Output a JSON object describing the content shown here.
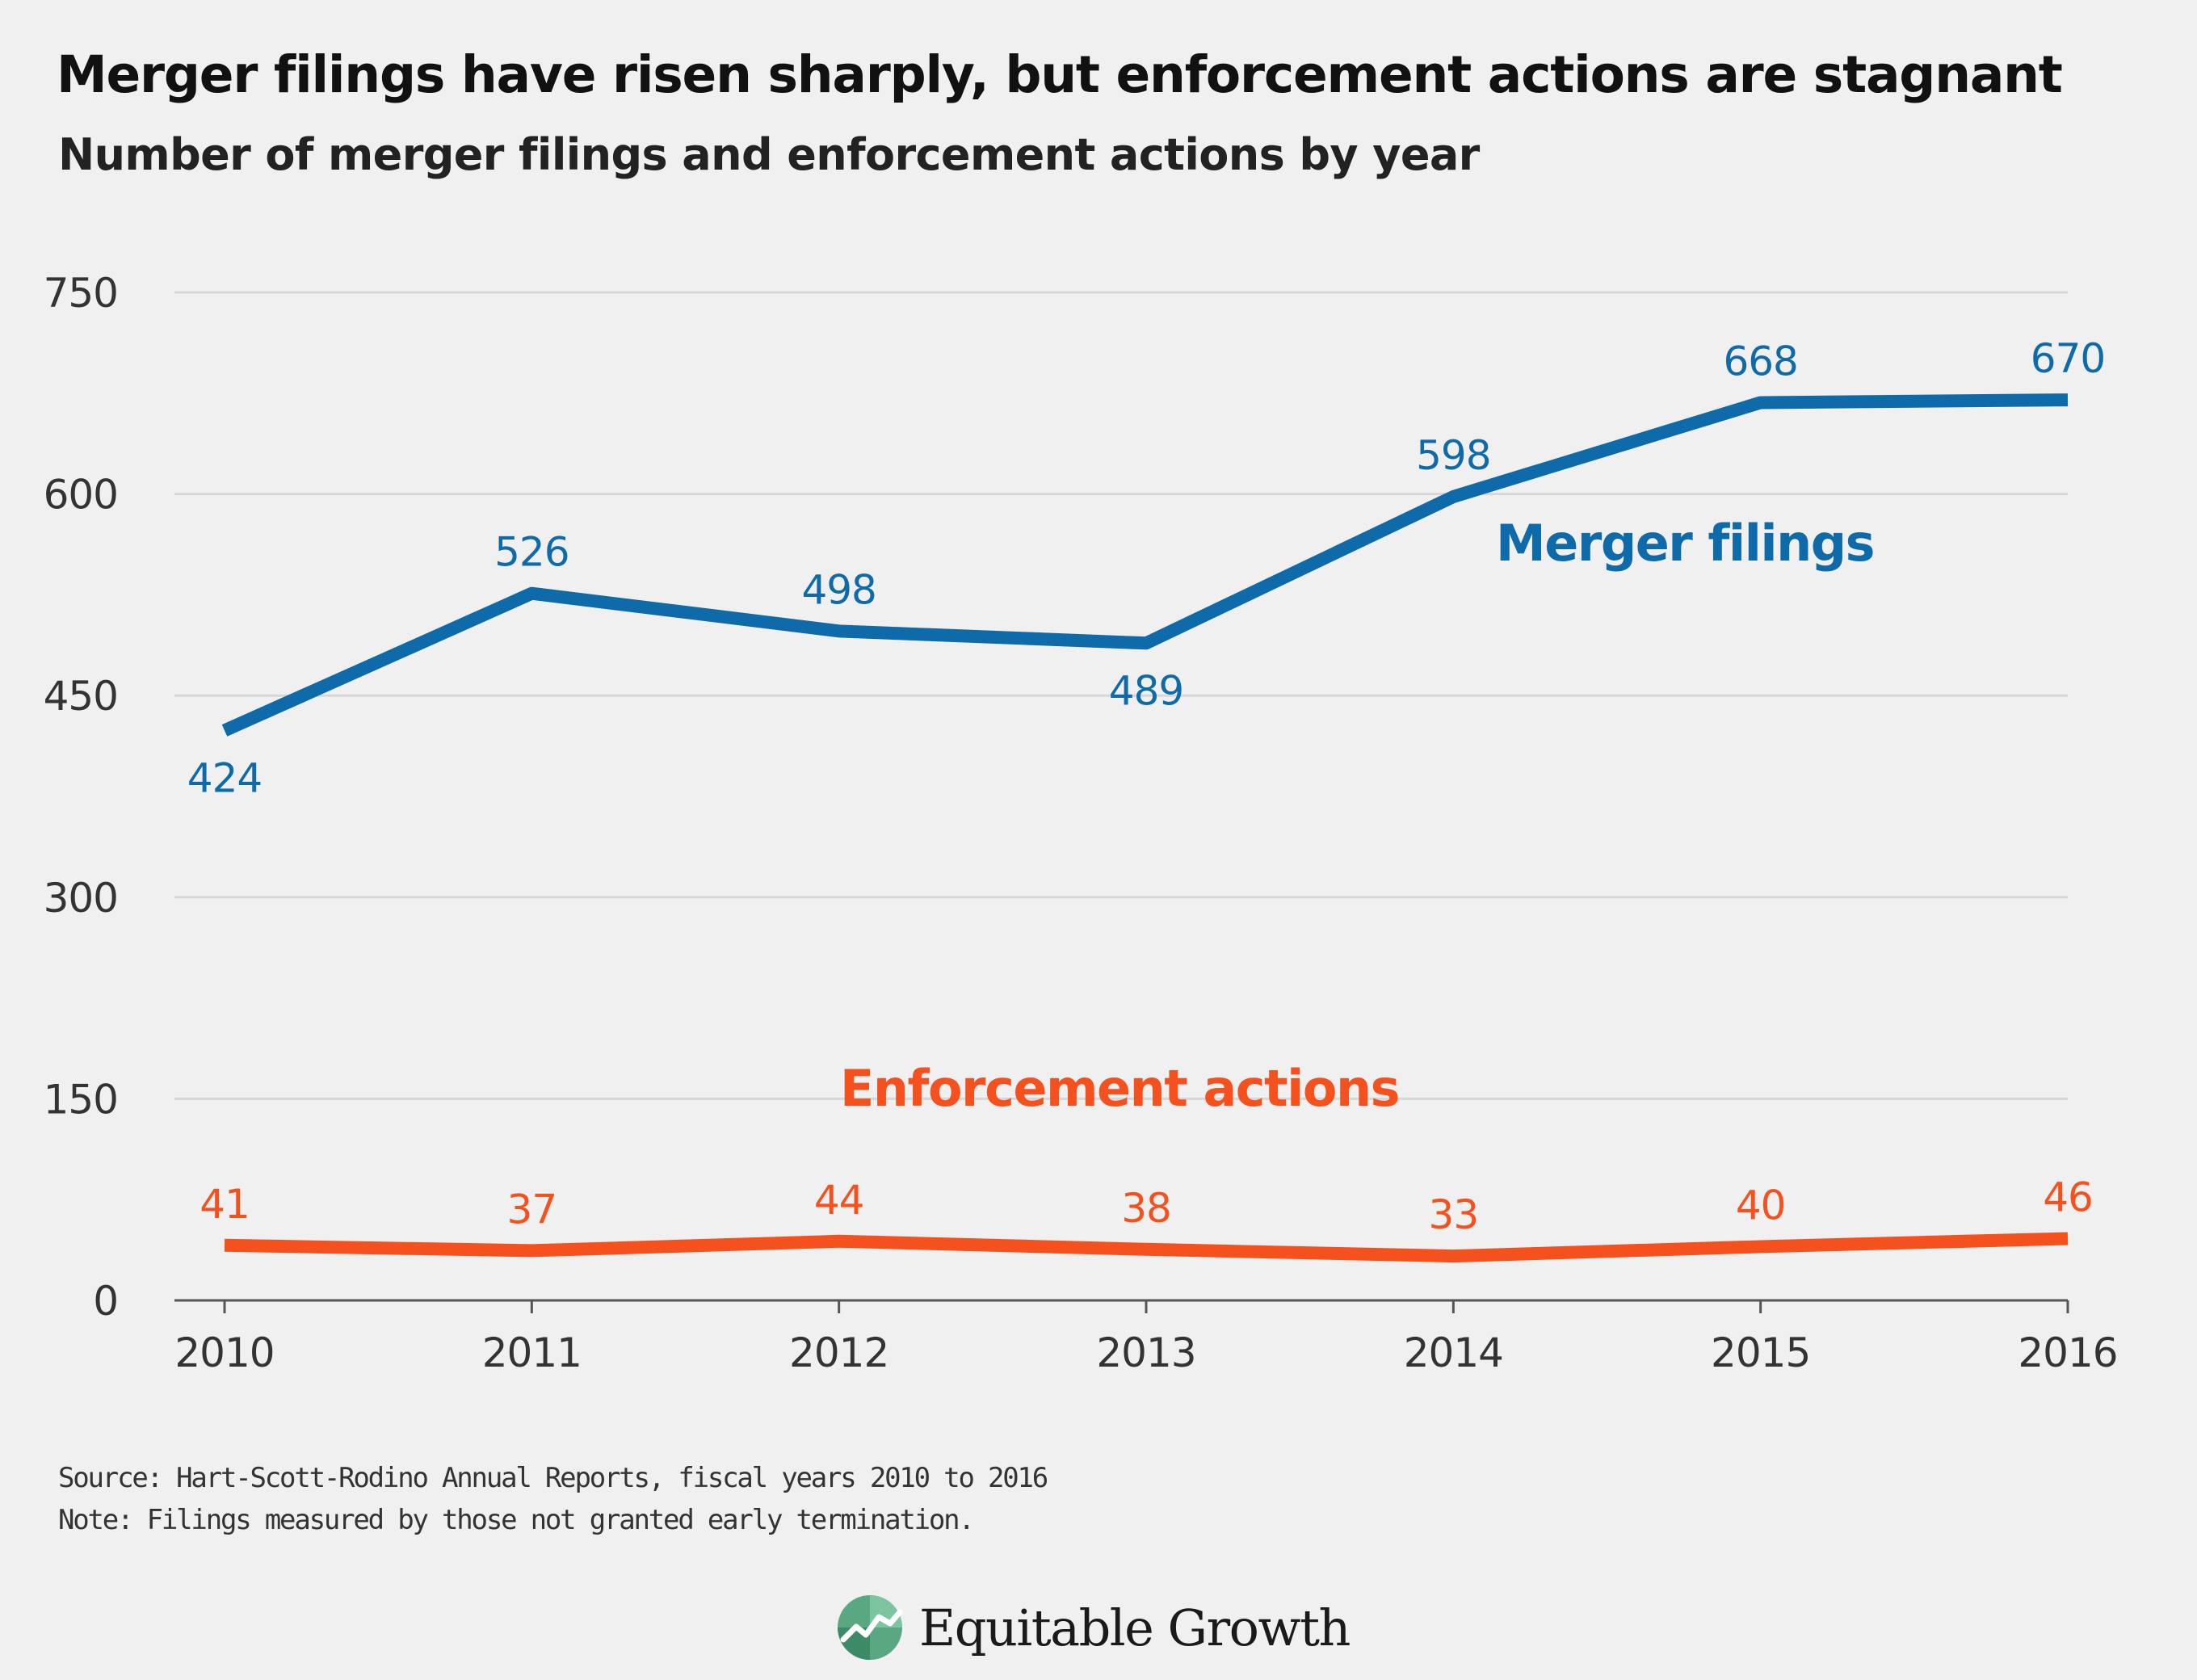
{
  "title": "Merger filings have risen sharply, but enforcement actions are stagnant",
  "subtitle": "Number of merger filings and enforcement actions by year",
  "source": "Source: Hart-Scott-Rodino Annual Reports, fiscal years 2010 to 2016",
  "note": "Note: Filings measured by those not granted early termination.",
  "brand": {
    "name": "Equitable Growth",
    "logo_icon": "growth-chart-icon"
  },
  "colors": {
    "background": "#f0f0f0",
    "merger": "#0e6aa8",
    "enforcement": "#f4511e",
    "grid": "#d7d7d7",
    "axis_text": "#333333"
  },
  "chart_data": {
    "type": "line",
    "x": [
      "2010",
      "2011",
      "2012",
      "2013",
      "2014",
      "2015",
      "2016"
    ],
    "y_ticks": [
      0,
      150,
      300,
      450,
      600,
      750
    ],
    "ylim": [
      0,
      750
    ],
    "grid": true,
    "series": [
      {
        "name": "Merger filings",
        "color": "#0e6aa8",
        "values": [
          424,
          526,
          498,
          489,
          598,
          668,
          670
        ],
        "label_positions": [
          "below",
          "above",
          "above",
          "below",
          "above",
          "above",
          "above"
        ]
      },
      {
        "name": "Enforcement actions",
        "color": "#f4511e",
        "values": [
          41,
          37,
          44,
          38,
          33,
          40,
          46
        ],
        "label_positions": [
          "above",
          "above",
          "above",
          "above",
          "above",
          "above",
          "above"
        ]
      }
    ]
  }
}
